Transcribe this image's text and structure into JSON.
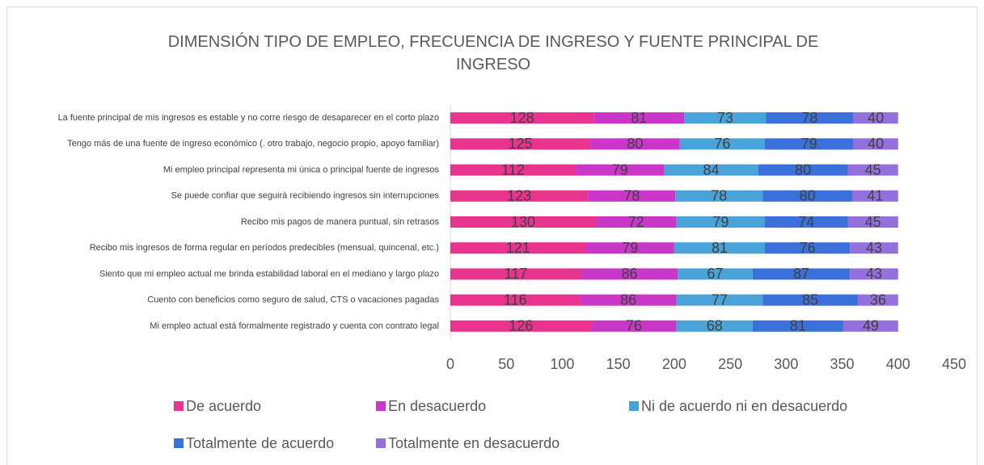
{
  "chart_data": {
    "type": "stacked_barh",
    "title": "DIMENSIÓN TIPO DE EMPLEO, FRECUENCIA DE INGRESO Y FUENTE PRINCIPAL DE INGRESO",
    "categories": [
      "La fuente principal de mis ingresos es estable y no corre riesgo de desaparecer en el corto plazo",
      "Tengo más de una fuente de ingreso económico (. otro trabajo, negocio propio, apoyo familiar)",
      "Mi empleo principal representa mi única o principal fuente de ingresos",
      "Se puede confiar que seguirá recibiendo ingresos sin interrupciones",
      "Recibo mis pagos de manera puntual, sin retrasos",
      "Recibo mis ingresos de forma regular en períodos predecibles (mensual, quincenal, etc.)",
      "Siento que mi empleo actual me brinda estabilidad laboral en el mediano y largo plazo",
      "Cuento con beneficios como seguro de salud, CTS o vacaciones pagadas",
      "Mi empleo actual está formalmente registrado y cuenta con contrato legal"
    ],
    "series": [
      {
        "name": "De acuerdo",
        "color": "#e8348f",
        "values": [
          128,
          125,
          112,
          123,
          130,
          121,
          117,
          116,
          126
        ]
      },
      {
        "name": "En desacuerdo",
        "color": "#c837c8",
        "values": [
          81,
          80,
          79,
          78,
          72,
          79,
          86,
          86,
          76
        ]
      },
      {
        "name": "Ni de acuerdo ni en desacuerdo",
        "color": "#4aa3d8",
        "values": [
          73,
          76,
          84,
          78,
          79,
          81,
          67,
          77,
          68
        ]
      },
      {
        "name": "Totalmente de acuerdo",
        "color": "#3b6fd9",
        "values": [
          78,
          79,
          80,
          80,
          74,
          76,
          87,
          85,
          81
        ]
      },
      {
        "name": "Totalmente en desacuerdo",
        "color": "#9370db",
        "values": [
          40,
          40,
          45,
          41,
          45,
          43,
          43,
          36,
          49
        ]
      }
    ],
    "xlim": [
      0,
      450
    ],
    "xticks": [
      0,
      50,
      100,
      150,
      200,
      250,
      300,
      350,
      400,
      450
    ],
    "legend": "bottom"
  }
}
